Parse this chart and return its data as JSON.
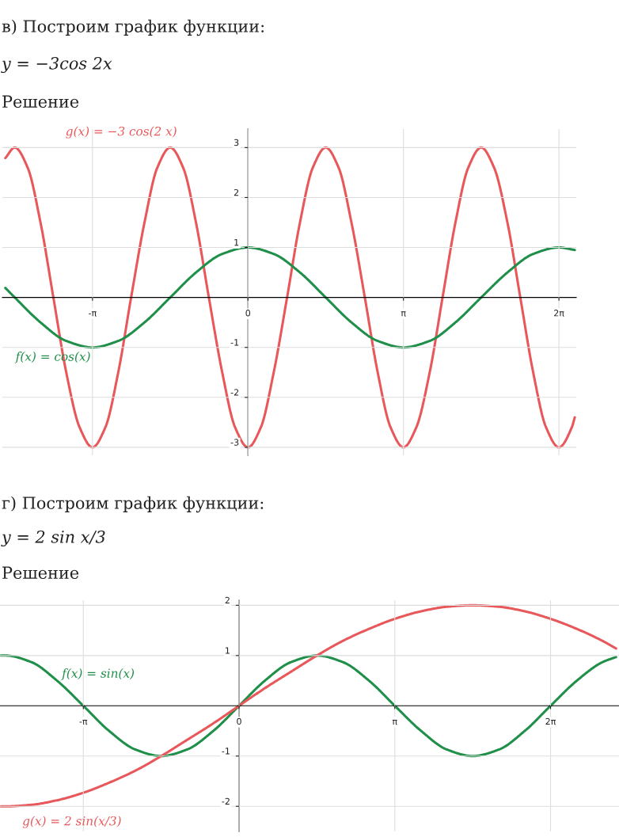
{
  "chart_data": [
    {
      "type": "line",
      "title": "в) Построим график функции:",
      "subtitle": "y = −3cos 2x",
      "annotations": [
        "Решение"
      ],
      "xlim": [
        -4.96,
        6.63
      ],
      "ylim": [
        -3.16,
        3.37
      ],
      "xticks": [
        {
          "value": -3.14,
          "label": "-π"
        },
        0,
        {
          "value": 3.14,
          "label": "π"
        },
        {
          "value": 6.28,
          "label": "2π"
        }
      ],
      "yticks": [
        -3,
        -2,
        -1,
        1,
        2,
        3
      ],
      "grid": true,
      "series": [
        {
          "name": "g(x) = −3 cos(2 x)",
          "color": "#e8575a",
          "x": [
            -4.9,
            -4.71,
            -4.45,
            -4.19,
            -3.93,
            -3.67,
            -3.4,
            -3.14,
            -2.88,
            -2.62,
            -2.36,
            -2.09,
            -1.83,
            -1.57,
            -1.31,
            -1.05,
            -0.79,
            -0.52,
            -0.26,
            0,
            0.26,
            0.52,
            0.79,
            1.05,
            1.31,
            1.57,
            1.83,
            2.09,
            2.36,
            2.62,
            2.88,
            3.14,
            3.4,
            3.67,
            3.93,
            4.19,
            4.45,
            4.71,
            4.97,
            5.24,
            5.5,
            5.76,
            6.02,
            6.28,
            6.54,
            6.6
          ],
          "values": [
            2.79,
            3,
            2.6,
            1.5,
            0,
            -1.5,
            -2.6,
            -3,
            -2.6,
            -1.5,
            0,
            1.5,
            2.6,
            3,
            2.6,
            1.5,
            0,
            -1.5,
            -2.6,
            -3,
            -2.6,
            -1.5,
            0,
            1.5,
            2.6,
            3,
            2.6,
            1.5,
            0,
            -1.5,
            -2.6,
            -3,
            -2.6,
            -1.5,
            0,
            1.5,
            2.6,
            3,
            2.6,
            1.5,
            0,
            -1.5,
            -2.6,
            -3,
            -2.6,
            -2.4
          ]
        },
        {
          "name": "f(x) = cos(x)",
          "color": "#1f8f4a",
          "x": [
            -4.9,
            -4.71,
            -4.19,
            -3.67,
            -3.14,
            -2.62,
            -2.09,
            -1.57,
            -1.05,
            -0.52,
            0,
            0.52,
            1.05,
            1.57,
            2.09,
            2.62,
            3.14,
            3.67,
            4.19,
            4.71,
            5.24,
            5.76,
            6.28,
            6.6
          ],
          "values": [
            0.19,
            0,
            -0.5,
            -0.87,
            -1,
            -0.87,
            -0.5,
            0,
            0.5,
            0.87,
            1,
            0.87,
            0.5,
            0,
            -0.5,
            -0.87,
            -1,
            -0.87,
            -0.5,
            0,
            0.5,
            0.87,
            1,
            0.95
          ]
        }
      ]
    },
    {
      "type": "line",
      "title": "г) Построим график функции:",
      "subtitle": "y = 2 sin x/3",
      "annotations": [
        "Решение"
      ],
      "xlim": [
        -4.82,
        7.66
      ],
      "ylim": [
        -2.5,
        2.1
      ],
      "xticks": [
        {
          "value": -3.14,
          "label": "-π"
        },
        0,
        {
          "value": 3.14,
          "label": "π"
        },
        {
          "value": 6.28,
          "label": "2π"
        }
      ],
      "yticks": [
        -2,
        -1,
        1,
        2
      ],
      "grid": true,
      "series": [
        {
          "name": "f(x) = sin(x)",
          "color": "#1f8f4a",
          "x": [
            -4.8,
            -4.71,
            -4.19,
            -3.67,
            -3.14,
            -2.62,
            -2.09,
            -1.57,
            -1.05,
            -0.52,
            0,
            0.52,
            1.05,
            1.57,
            2.09,
            2.62,
            3.14,
            3.67,
            4.19,
            4.71,
            5.24,
            5.76,
            6.28,
            6.81,
            7.33,
            7.6
          ],
          "values": [
            1,
            1,
            0.87,
            0.5,
            0,
            -0.5,
            -0.87,
            -1,
            -0.87,
            -0.5,
            0,
            0.5,
            0.87,
            1,
            0.87,
            0.5,
            0,
            -0.5,
            -0.87,
            -1,
            -0.87,
            -0.5,
            0,
            0.5,
            0.87,
            0.97
          ]
        },
        {
          "name": "g(x) = 2 sin(x/3)",
          "color": "#e8575a",
          "x": [
            -4.8,
            -4.71,
            -4.19,
            -3.67,
            -3.14,
            -2.62,
            -2.09,
            -1.57,
            -1.05,
            -0.52,
            0,
            0.52,
            1.05,
            1.57,
            2.09,
            2.62,
            3.14,
            3.67,
            4.19,
            4.71,
            5.24,
            5.76,
            6.28,
            6.81,
            7.33,
            7.6
          ],
          "values": [
            -2,
            -2,
            -1.97,
            -1.88,
            -1.73,
            -1.53,
            -1.29,
            -1,
            -0.68,
            -0.35,
            0,
            0.35,
            0.68,
            1,
            1.29,
            1.53,
            1.73,
            1.88,
            1.97,
            2,
            1.97,
            1.88,
            1.73,
            1.53,
            1.29,
            1.14
          ]
        }
      ]
    }
  ]
}
